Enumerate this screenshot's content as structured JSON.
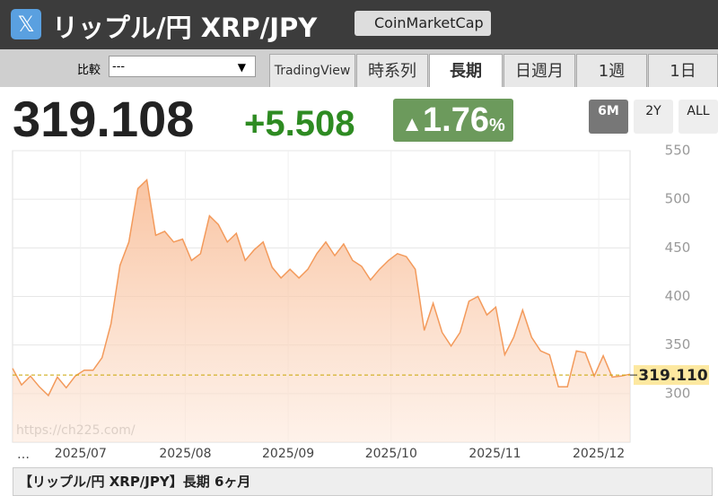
{
  "header": {
    "title": "リップル/円 XRP/JPY",
    "source_button": "CoinMarketCap"
  },
  "toolbar": {
    "compare_label": "比較",
    "compare_value": "---",
    "tabs": [
      "TradingView",
      "時系列",
      "長期",
      "日週月",
      "1週",
      "1日"
    ],
    "active_tab": 2
  },
  "quote": {
    "price": "319.108",
    "change": "+5.508",
    "change_pct": "1.76",
    "pct_sign": "%"
  },
  "range_buttons": [
    "6M",
    "2Y",
    "ALL"
  ],
  "active_range": 0,
  "chart_data": {
    "type": "area",
    "color": "#f39a5b",
    "values": [
      326,
      309,
      318,
      307,
      298,
      317,
      306,
      318,
      324,
      324,
      337,
      372,
      432,
      456,
      511,
      520,
      463,
      467,
      456,
      459,
      437,
      444,
      483,
      474,
      456,
      465,
      437,
      448,
      456,
      430,
      419,
      428,
      419,
      428,
      444,
      456,
      442,
      454,
      437,
      431,
      417,
      428,
      437,
      444,
      441,
      428,
      365,
      393,
      363,
      349,
      363,
      395,
      400,
      381,
      389,
      340,
      358,
      386,
      358,
      344,
      340,
      307,
      307,
      344,
      342,
      318,
      339,
      317,
      318,
      320
    ],
    "xlim": [
      0,
      69
    ],
    "xticks": [
      {
        "value": 7.6,
        "label": "2025/07"
      },
      {
        "value": 19.3,
        "label": "2025/08"
      },
      {
        "value": 30.8,
        "label": "2025/09"
      },
      {
        "value": 42.3,
        "label": "2025/10"
      },
      {
        "value": 53.9,
        "label": "2025/11"
      },
      {
        "value": 65.5,
        "label": "2025/12"
      }
    ],
    "x_start_label": "…",
    "ylim": [
      250,
      550
    ],
    "yticks": [
      300,
      350,
      400,
      450,
      500,
      550
    ],
    "grid": true,
    "reference_line": {
      "value": 319.11,
      "label": "319.110"
    },
    "watermark": "https://ch225.com/"
  },
  "footer": {
    "caption": "【リップル/円 XRP/JPY】長期 6ヶ月"
  }
}
